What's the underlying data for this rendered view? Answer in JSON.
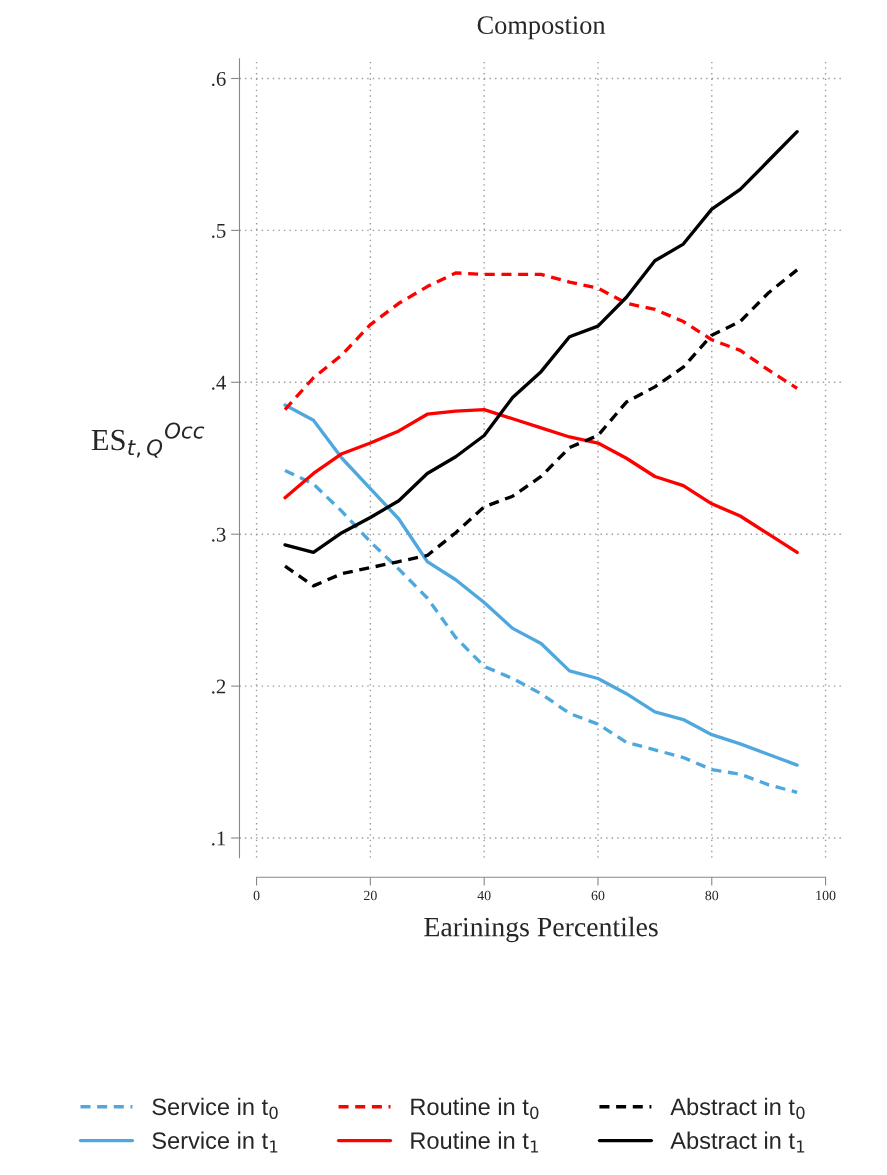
{
  "chart_data": {
    "type": "line",
    "title": "Compostion",
    "xlabel": "Earinings Percentiles",
    "ylabel": "ES$_{t,Q}$$^{Occ}$",
    "x": [
      5,
      10,
      15,
      20,
      25,
      30,
      35,
      40,
      45,
      50,
      55,
      60,
      65,
      70,
      75,
      80,
      85,
      90,
      95
    ],
    "series": [
      {
        "name": "Service in t$_{0}$",
        "color": "#4ea8de",
        "line_style": "dashed",
        "values": [
          0.342,
          0.333,
          0.315,
          0.295,
          0.277,
          0.258,
          0.232,
          0.213,
          0.205,
          0.195,
          0.182,
          0.175,
          0.163,
          0.158,
          0.153,
          0.145,
          0.142,
          0.135,
          0.13
        ]
      },
      {
        "name": "Service in t$_{1}$",
        "color": "#4ea8de",
        "line_style": "solid",
        "values": [
          0.385,
          0.375,
          0.35,
          0.33,
          0.31,
          0.282,
          0.27,
          0.255,
          0.238,
          0.228,
          0.21,
          0.205,
          0.195,
          0.183,
          0.178,
          0.168,
          0.162,
          0.155,
          0.148
        ]
      },
      {
        "name": "Routine in t$_{0}$",
        "color": "#ff0000",
        "line_style": "dashed",
        "values": [
          0.382,
          0.403,
          0.418,
          0.438,
          0.452,
          0.463,
          0.472,
          0.471,
          0.471,
          0.471,
          0.466,
          0.462,
          0.452,
          0.448,
          0.44,
          0.428,
          0.421,
          0.408,
          0.396
        ]
      },
      {
        "name": "Routine in t$_{1}$",
        "color": "#ff0000",
        "line_style": "solid",
        "values": [
          0.324,
          0.34,
          0.353,
          0.36,
          0.368,
          0.379,
          0.381,
          0.382,
          0.376,
          0.37,
          0.364,
          0.36,
          0.35,
          0.338,
          0.332,
          0.32,
          0.312,
          0.3,
          0.288
        ]
      },
      {
        "name": "Abstract in t$_{0}$",
        "color": "#000000",
        "line_style": "dashed",
        "values": [
          0.279,
          0.266,
          0.274,
          0.278,
          0.282,
          0.286,
          0.301,
          0.318,
          0.325,
          0.338,
          0.357,
          0.365,
          0.387,
          0.397,
          0.41,
          0.431,
          0.44,
          0.459,
          0.474
        ]
      },
      {
        "name": "Abstract in t$_{1}$",
        "color": "#000000",
        "line_style": "solid",
        "values": [
          0.293,
          0.288,
          0.301,
          0.311,
          0.322,
          0.34,
          0.351,
          0.365,
          0.39,
          0.407,
          0.43,
          0.437,
          0.456,
          0.48,
          0.491,
          0.514,
          0.527,
          0.546,
          0.565
        ]
      }
    ],
    "xlim": [
      -3,
      103
    ],
    "xticks": [
      0,
      20,
      40,
      60,
      80,
      100
    ],
    "ylim": [
      0.087,
      0.613
    ],
    "yticks": [
      {
        "value": 0.1,
        "label": ".1"
      },
      {
        "value": 0.2,
        "label": ".2"
      },
      {
        "value": 0.3,
        "label": ".3"
      },
      {
        "value": 0.4,
        "label": ".4"
      },
      {
        "value": 0.5,
        "label": ".5"
      },
      {
        "value": 0.6,
        "label": ".6"
      }
    ],
    "grid": true,
    "legend": "bottom",
    "marker": "none"
  }
}
